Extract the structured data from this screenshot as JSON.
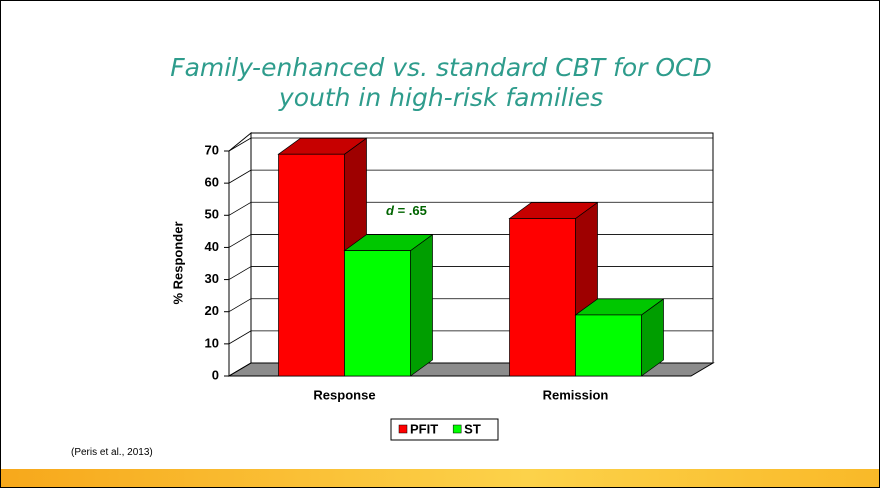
{
  "title": "Family-enhanced vs. standard CBT for OCD youth in high-risk families",
  "source": "(Peris et al., 2013)",
  "chart_data": {
    "type": "bar3d",
    "categories": [
      "Response",
      "Remission"
    ],
    "series": [
      {
        "name": "PFIT",
        "color": "#ff0000",
        "values": [
          69,
          49
        ]
      },
      {
        "name": "ST",
        "color": "#00ff00",
        "values": [
          39,
          19
        ]
      }
    ],
    "y_label": "% Responder",
    "ylim": [
      0,
      70
    ],
    "yticks": [
      0,
      10,
      20,
      30,
      40,
      50,
      60,
      70
    ],
    "annotation": "d = .65",
    "grid": true,
    "legend": "bottom"
  }
}
